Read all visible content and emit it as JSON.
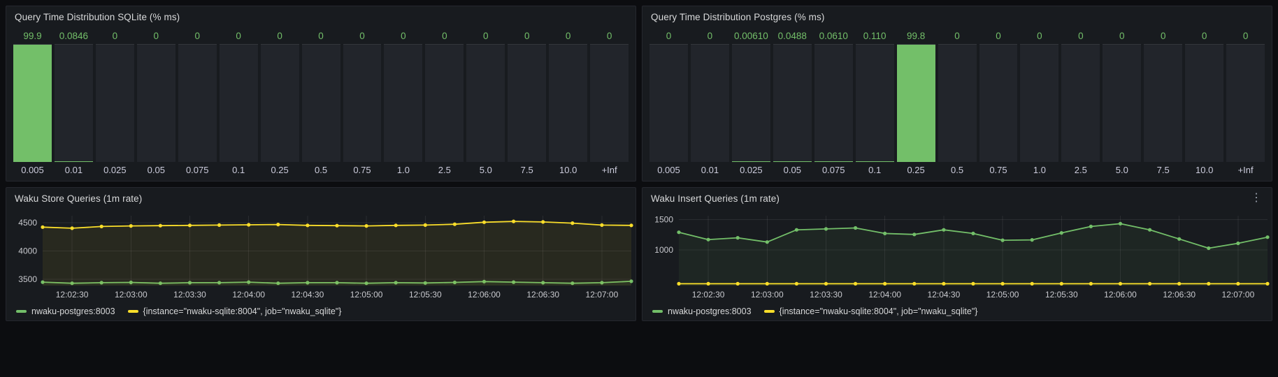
{
  "colors": {
    "green": "#73bf69",
    "yellow": "#fade2a",
    "panel_bg": "#181b1f",
    "page_bg": "#0c0d10",
    "text": "#d8d9da"
  },
  "panels": [
    {
      "title": "Query Time Distribution SQLite (% ms)"
    },
    {
      "title": "Query Time Distribution Postgres (% ms)"
    },
    {
      "title": "Waku Store Queries (1m rate)"
    },
    {
      "title": "Waku Insert Queries (1m rate)",
      "menu_icon": "⋮"
    }
  ],
  "chart_data": [
    {
      "type": "bar",
      "title": "Query Time Distribution SQLite (% ms)",
      "unit": "%",
      "ylim": [
        0,
        100
      ],
      "categories": [
        "0.005",
        "0.01",
        "0.025",
        "0.05",
        "0.075",
        "0.1",
        "0.25",
        "0.5",
        "0.75",
        "1.0",
        "2.5",
        "5.0",
        "7.5",
        "10.0",
        "+Inf"
      ],
      "values": [
        99.9,
        0.0846,
        0,
        0,
        0,
        0,
        0,
        0,
        0,
        0,
        0,
        0,
        0,
        0,
        0
      ],
      "value_labels": [
        "99.9",
        "0.0846",
        "0",
        "0",
        "0",
        "0",
        "0",
        "0",
        "0",
        "0",
        "0",
        "0",
        "0",
        "0",
        "0"
      ]
    },
    {
      "type": "bar",
      "title": "Query Time Distribution Postgres (% ms)",
      "unit": "%",
      "ylim": [
        0,
        100
      ],
      "categories": [
        "0.005",
        "0.01",
        "0.025",
        "0.05",
        "0.075",
        "0.1",
        "0.25",
        "0.5",
        "0.75",
        "1.0",
        "2.5",
        "5.0",
        "7.5",
        "10.0",
        "+Inf"
      ],
      "values": [
        0,
        0,
        0.0061,
        0.0488,
        0.061,
        0.11,
        99.8,
        0,
        0,
        0,
        0,
        0,
        0,
        0,
        0
      ],
      "value_labels": [
        "0",
        "0",
        "0.00610",
        "0.0488",
        "0.0610",
        "0.110",
        "99.8",
        "0",
        "0",
        "0",
        "0",
        "0",
        "0",
        "0",
        "0"
      ]
    },
    {
      "type": "line",
      "title": "Waku Store Queries (1m rate)",
      "grid": true,
      "legend_position": "bottom",
      "x": [
        "12:02:15",
        "12:02:30",
        "12:02:45",
        "12:03:00",
        "12:03:15",
        "12:03:30",
        "12:03:45",
        "12:04:00",
        "12:04:15",
        "12:04:30",
        "12:04:45",
        "12:05:00",
        "12:05:15",
        "12:05:30",
        "12:05:45",
        "12:06:00",
        "12:06:15",
        "12:06:30",
        "12:06:45",
        "12:07:00",
        "12:07:15"
      ],
      "x_ticks": [
        "12:02:30",
        "12:03:00",
        "12:03:30",
        "12:04:00",
        "12:04:30",
        "12:05:00",
        "12:05:30",
        "12:06:00",
        "12:06:30",
        "12:07:00"
      ],
      "y_ticks": [
        3500,
        4000,
        4500
      ],
      "ylim": [
        3390,
        4620
      ],
      "series": [
        {
          "name": "nwaku-postgres:8003",
          "color": "green",
          "values": [
            3450,
            3430,
            3440,
            3445,
            3430,
            3440,
            3440,
            3450,
            3430,
            3440,
            3440,
            3430,
            3440,
            3435,
            3445,
            3460,
            3450,
            3440,
            3430,
            3440,
            3465
          ]
        },
        {
          "name": "{instance=\"nwaku-sqlite:8004\", job=\"nwaku_sqlite\"}",
          "color": "yellow",
          "values": [
            4420,
            4400,
            4430,
            4440,
            4445,
            4450,
            4455,
            4460,
            4465,
            4450,
            4445,
            4440,
            4450,
            4455,
            4470,
            4505,
            4520,
            4510,
            4490,
            4455,
            4450
          ]
        }
      ]
    },
    {
      "type": "line",
      "title": "Waku Insert Queries (1m rate)",
      "grid": true,
      "legend_position": "bottom",
      "x": [
        "12:02:15",
        "12:02:30",
        "12:02:45",
        "12:03:00",
        "12:03:15",
        "12:03:30",
        "12:03:45",
        "12:04:00",
        "12:04:15",
        "12:04:30",
        "12:04:45",
        "12:05:00",
        "12:05:15",
        "12:05:30",
        "12:05:45",
        "12:06:00",
        "12:06:15",
        "12:06:30",
        "12:06:45",
        "12:07:00",
        "12:07:15"
      ],
      "x_ticks": [
        "12:02:30",
        "12:03:00",
        "12:03:30",
        "12:04:00",
        "12:04:30",
        "12:05:00",
        "12:05:30",
        "12:06:00",
        "12:06:30",
        "12:07:00"
      ],
      "y_ticks": [
        1000,
        1500
      ],
      "ylim": [
        420,
        1560
      ],
      "series": [
        {
          "name": "nwaku-postgres:8003",
          "color": "green",
          "values": [
            1290,
            1170,
            1200,
            1130,
            1330,
            1345,
            1360,
            1270,
            1255,
            1330,
            1270,
            1160,
            1165,
            1280,
            1385,
            1430,
            1330,
            1180,
            1030,
            1110,
            1210
          ]
        },
        {
          "name": "{instance=\"nwaku-sqlite:8004\", job=\"nwaku_sqlite\"}",
          "color": "yellow",
          "values": [
            450,
            450,
            450,
            450,
            450,
            450,
            450,
            450,
            450,
            450,
            450,
            450,
            450,
            450,
            450,
            450,
            450,
            450,
            450,
            450,
            450
          ]
        }
      ]
    }
  ]
}
